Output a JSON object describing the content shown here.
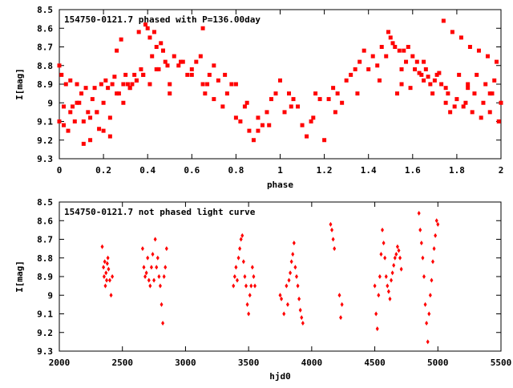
{
  "colors": {
    "series": "#ff0000",
    "frame": "#000000",
    "background": "#ffffff"
  },
  "chart_data": [
    {
      "type": "scatter",
      "title": "154750-0121.7 phased with P=136.00day",
      "xlabel": "phase",
      "ylabel": "I[mag]",
      "xlim": [
        0,
        2
      ],
      "ylim": [
        9.3,
        8.5
      ],
      "y_inverted": true,
      "grid": false,
      "marker": "square",
      "xticks": [
        "0",
        "0.2",
        "0.4",
        "0.6",
        "0.8",
        "1",
        "1.2",
        "1.4",
        "1.6",
        "1.8",
        "2"
      ],
      "xtick_values": [
        0,
        0.2,
        0.4,
        0.6,
        0.8,
        1,
        1.2,
        1.4,
        1.6,
        1.8,
        2
      ],
      "yticks": [
        "8.5",
        "8.6",
        "8.7",
        "8.8",
        "8.9",
        "9",
        "9.1",
        "9.2",
        "9.3"
      ],
      "ytick_values": [
        8.5,
        8.6,
        8.7,
        8.8,
        8.9,
        9,
        9.1,
        9.2,
        9.3
      ],
      "series": [
        {
          "x": [
            0.0,
            0.0,
            0.01,
            0.02,
            0.03,
            0.04,
            0.05,
            0.06,
            0.07,
            0.08,
            0.09,
            0.1,
            0.11,
            0.12,
            0.13,
            0.14,
            0.15,
            0.16,
            0.17,
            0.18,
            0.19,
            0.2,
            0.21,
            0.22,
            0.23,
            0.24,
            0.25,
            0.26,
            0.27,
            0.28,
            0.29,
            0.3,
            0.31,
            0.32,
            0.33,
            0.34,
            0.35,
            0.36,
            0.37,
            0.38,
            0.39,
            0.4,
            0.41,
            0.42,
            0.43,
            0.44,
            0.45,
            0.46,
            0.47,
            0.48,
            0.49,
            0.5,
            0.52,
            0.54,
            0.56,
            0.58,
            0.6,
            0.62,
            0.64,
            0.65,
            0.66,
            0.67,
            0.68,
            0.7,
            0.72,
            0.74,
            0.76,
            0.78,
            0.8,
            0.82,
            0.84,
            0.86,
            0.88,
            0.9,
            0.92,
            0.94,
            0.96,
            0.98,
            1.0,
            1.02,
            1.04,
            1.06,
            1.08,
            1.1,
            1.12,
            1.14,
            1.16,
            1.18,
            1.2,
            1.22,
            1.24,
            1.26,
            1.28,
            1.3,
            1.32,
            1.34,
            1.36,
            1.38,
            1.4,
            1.42,
            1.44,
            1.46,
            1.48,
            1.49,
            1.5,
            1.51,
            1.52,
            1.53,
            1.54,
            1.55,
            1.56,
            1.57,
            1.58,
            1.59,
            1.6,
            1.61,
            1.62,
            1.63,
            1.64,
            1.65,
            1.66,
            1.67,
            1.68,
            1.69,
            1.7,
            1.71,
            1.72,
            1.73,
            1.74,
            1.75,
            1.76,
            1.77,
            1.78,
            1.79,
            1.8,
            1.81,
            1.82,
            1.83,
            1.84,
            1.85,
            1.86,
            1.87,
            1.88,
            1.89,
            1.9,
            1.91,
            1.92,
            1.93,
            1.94,
            1.95,
            1.96,
            1.97,
            1.98,
            1.99,
            2.0,
            0.02,
            0.05,
            0.08,
            0.11,
            0.14,
            0.17,
            0.2,
            0.23,
            0.26,
            0.29,
            0.32,
            0.35,
            0.38,
            0.41,
            0.44,
            0.47,
            0.5,
            0.55,
            0.6,
            0.65,
            0.7,
            0.75,
            0.8,
            0.85,
            0.9,
            0.95,
            1.05,
            1.15,
            1.25,
            1.35,
            1.45,
            1.55,
            1.65,
            1.75,
            1.85,
            1.95
          ],
          "y": [
            9.1,
            8.8,
            8.85,
            9.12,
            8.9,
            9.15,
            8.88,
            9.02,
            9.1,
            8.9,
            9.0,
            8.95,
            9.22,
            8.92,
            9.05,
            9.2,
            8.98,
            8.92,
            9.05,
            9.14,
            8.9,
            9.0,
            8.88,
            8.92,
            9.08,
            8.9,
            8.86,
            8.72,
            8.95,
            8.66,
            8.9,
            8.85,
            8.9,
            8.92,
            8.9,
            8.85,
            8.88,
            8.62,
            8.82,
            8.85,
            8.58,
            8.6,
            8.65,
            8.75,
            8.62,
            8.7,
            8.82,
            8.68,
            8.72,
            8.78,
            8.8,
            8.9,
            8.75,
            8.8,
            8.78,
            8.85,
            8.82,
            8.78,
            8.75,
            8.6,
            8.95,
            8.9,
            8.85,
            8.98,
            8.88,
            9.02,
            8.95,
            8.9,
            9.08,
            9.1,
            9.02,
            9.15,
            9.2,
            9.15,
            9.12,
            9.05,
            8.98,
            8.95,
            8.88,
            9.05,
            8.95,
            8.98,
            9.02,
            9.12,
            9.18,
            9.1,
            8.95,
            8.98,
            9.2,
            8.98,
            8.92,
            8.95,
            9.0,
            8.88,
            8.85,
            8.82,
            8.78,
            8.72,
            8.82,
            8.75,
            8.8,
            8.7,
            8.75,
            8.62,
            8.65,
            8.68,
            8.7,
            8.95,
            8.72,
            8.9,
            8.72,
            8.78,
            8.7,
            8.92,
            8.75,
            8.82,
            8.78,
            8.84,
            8.85,
            8.88,
            8.82,
            8.86,
            8.9,
            8.95,
            8.88,
            8.85,
            8.84,
            8.9,
            8.56,
            8.92,
            8.95,
            9.05,
            8.62,
            9.02,
            8.98,
            8.85,
            8.65,
            9.02,
            9.0,
            8.92,
            8.7,
            9.05,
            8.95,
            8.85,
            8.72,
            9.08,
            9.0,
            8.9,
            8.75,
            9.05,
            8.95,
            8.88,
            8.78,
            9.1,
            9.0,
            9.02,
            9.05,
            9.0,
            9.1,
            9.08,
            9.05,
            9.15,
            9.18,
            8.95,
            9.0,
            8.92,
            8.88,
            8.85,
            8.9,
            8.82,
            8.72,
            8.95,
            8.78,
            8.85,
            8.9,
            8.8,
            8.85,
            8.9,
            9.0,
            9.08,
            9.12,
            9.02,
            9.08,
            9.05,
            8.95,
            8.88,
            8.82,
            8.78,
            9.0,
            8.9,
            8.95
          ]
        }
      ]
    },
    {
      "type": "scatter",
      "title": "154750-0121.7 not phased light curve",
      "xlabel": "hjd0",
      "ylabel": "I[mag]",
      "xlim": [
        2000,
        5500
      ],
      "ylim": [
        9.3,
        8.5
      ],
      "y_inverted": true,
      "grid": false,
      "marker": "diamond",
      "xticks": [
        "2000",
        "2500",
        "3000",
        "3500",
        "4000",
        "4500",
        "5000",
        "5500"
      ],
      "xtick_values": [
        2000,
        2500,
        3000,
        3500,
        4000,
        4500,
        5000,
        5500
      ],
      "yticks": [
        "8.5",
        "8.6",
        "8.7",
        "8.8",
        "8.9",
        "9",
        "9.1",
        "9.2",
        "9.3"
      ],
      "ytick_values": [
        8.5,
        8.6,
        8.7,
        8.8,
        8.9,
        9,
        9.1,
        9.2,
        9.3
      ],
      "series": [
        {
          "x": [
            2340,
            2350,
            2355,
            2360,
            2365,
            2370,
            2375,
            2380,
            2385,
            2390,
            2400,
            2410,
            2420,
            2660,
            2670,
            2680,
            2690,
            2700,
            2710,
            2720,
            2730,
            2740,
            2750,
            2760,
            2770,
            2780,
            2790,
            2800,
            2810,
            2820,
            2830,
            2840,
            2850,
            3380,
            3390,
            3400,
            3410,
            3420,
            3430,
            3440,
            3450,
            3460,
            3470,
            3480,
            3490,
            3500,
            3510,
            3520,
            3530,
            3540,
            3550,
            3750,
            3760,
            3780,
            3800,
            3810,
            3820,
            3830,
            3840,
            3850,
            3860,
            3870,
            3880,
            3890,
            3900,
            3910,
            3920,
            3930,
            4150,
            4160,
            4170,
            4180,
            4220,
            4230,
            4240,
            4500,
            4510,
            4520,
            4530,
            4540,
            4550,
            4560,
            4570,
            4580,
            4590,
            4600,
            4610,
            4620,
            4630,
            4640,
            4650,
            4660,
            4670,
            4680,
            4690,
            4700,
            4710,
            4850,
            4860,
            4870,
            4880,
            4890,
            4900,
            4910,
            4920,
            4930,
            4940,
            4950,
            4960,
            4970,
            4980,
            4990,
            5000
          ],
          "y": [
            8.74,
            8.85,
            8.9,
            8.82,
            8.95,
            8.88,
            8.92,
            8.83,
            8.8,
            8.86,
            8.92,
            9.0,
            8.9,
            8.75,
            8.85,
            8.9,
            8.88,
            8.8,
            8.92,
            8.95,
            8.85,
            8.78,
            8.92,
            8.7,
            8.85,
            8.8,
            8.9,
            8.95,
            9.05,
            9.15,
            8.9,
            8.85,
            8.75,
            8.95,
            8.9,
            8.85,
            8.92,
            8.8,
            8.75,
            8.7,
            8.68,
            8.82,
            8.9,
            8.95,
            9.05,
            9.1,
            9.0,
            8.95,
            8.85,
            8.9,
            8.95,
            9.0,
            9.02,
            9.1,
            8.95,
            9.05,
            8.92,
            8.88,
            8.82,
            8.78,
            8.72,
            8.85,
            8.9,
            8.95,
            9.02,
            9.08,
            9.12,
            9.15,
            8.62,
            8.65,
            8.7,
            8.75,
            9.0,
            9.12,
            9.05,
            8.95,
            9.1,
            9.18,
            9.0,
            8.9,
            8.78,
            8.65,
            8.72,
            8.8,
            8.9,
            8.95,
            8.98,
            9.02,
            8.92,
            8.88,
            8.84,
            8.8,
            8.78,
            8.74,
            8.76,
            8.8,
            8.86,
            8.56,
            8.65,
            8.72,
            8.8,
            8.9,
            9.05,
            9.15,
            9.25,
            9.1,
            9.0,
            8.92,
            8.82,
            8.75,
            8.68,
            8.6,
            8.62
          ]
        }
      ]
    }
  ]
}
